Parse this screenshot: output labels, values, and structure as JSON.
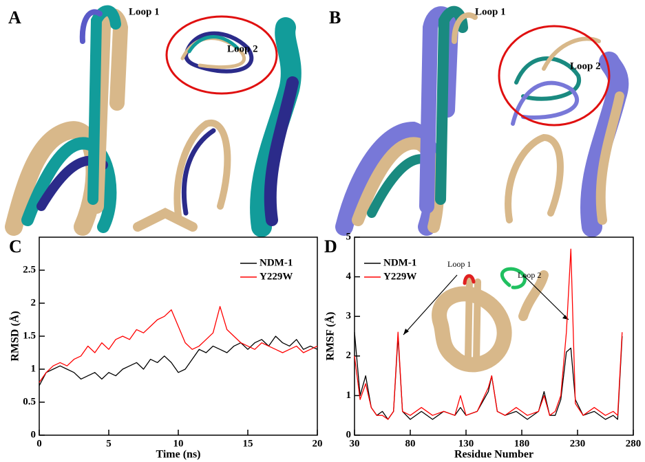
{
  "panels": {
    "A": {
      "label": "A",
      "annotations": [
        "Loop 1",
        "Loop 2"
      ]
    },
    "B": {
      "label": "B",
      "annotations": [
        "Loop 1",
        "Loop 2"
      ]
    }
  },
  "chart_data": [
    {
      "type": "line",
      "panel_label": "C",
      "xlabel": "Time (ns)",
      "ylabel": "RMSD (Å)",
      "xlim": [
        0,
        20
      ],
      "ylim": [
        0,
        3
      ],
      "xticks": [
        0,
        5,
        10,
        15,
        20
      ],
      "yticks": [
        0,
        0.5,
        1,
        1.5,
        2,
        2.5
      ],
      "legend": "upper right",
      "x": [
        0,
        0.5,
        1,
        1.5,
        2,
        2.5,
        3,
        3.5,
        4,
        4.5,
        5,
        5.5,
        6,
        6.5,
        7,
        7.5,
        8,
        8.5,
        9,
        9.5,
        10,
        10.5,
        11,
        11.5,
        12,
        12.5,
        13,
        13.5,
        14,
        14.5,
        15,
        15.5,
        16,
        16.5,
        17,
        17.5,
        18,
        18.5,
        19,
        19.5,
        20
      ],
      "series": [
        {
          "name": "NDM-1",
          "color": "#000000",
          "values": [
            0.75,
            0.95,
            1.0,
            1.05,
            1.0,
            0.95,
            0.85,
            0.9,
            0.95,
            0.85,
            0.95,
            0.9,
            1.0,
            1.05,
            1.1,
            1.0,
            1.15,
            1.1,
            1.2,
            1.1,
            0.95,
            1.0,
            1.15,
            1.3,
            1.25,
            1.35,
            1.3,
            1.25,
            1.35,
            1.4,
            1.3,
            1.4,
            1.45,
            1.35,
            1.5,
            1.4,
            1.35,
            1.45,
            1.3,
            1.35,
            1.3
          ]
        },
        {
          "name": "Y229W",
          "color": "#ff0000",
          "values": [
            0.8,
            0.95,
            1.05,
            1.1,
            1.05,
            1.15,
            1.2,
            1.35,
            1.25,
            1.4,
            1.3,
            1.45,
            1.5,
            1.45,
            1.6,
            1.55,
            1.65,
            1.75,
            1.8,
            1.9,
            1.65,
            1.4,
            1.3,
            1.35,
            1.45,
            1.55,
            1.95,
            1.6,
            1.5,
            1.4,
            1.35,
            1.3,
            1.4,
            1.35,
            1.3,
            1.25,
            1.3,
            1.35,
            1.25,
            1.3,
            1.35
          ]
        }
      ]
    },
    {
      "type": "line",
      "panel_label": "D",
      "xlabel": "Residue Number",
      "ylabel": "RMSF (Å)",
      "xlim": [
        30,
        280
      ],
      "ylim": [
        0,
        5
      ],
      "xticks": [
        30,
        80,
        130,
        180,
        230,
        280
      ],
      "yticks": [
        0,
        1,
        2,
        3,
        4,
        5
      ],
      "legend": "upper left",
      "annotations": [
        "Loop 1",
        "Loop 2"
      ],
      "x": [
        30,
        35,
        40,
        45,
        50,
        55,
        60,
        65,
        69,
        73,
        80,
        90,
        100,
        110,
        120,
        125,
        130,
        140,
        150,
        153,
        158,
        165,
        175,
        185,
        195,
        200,
        205,
        210,
        215,
        220,
        224,
        228,
        235,
        245,
        255,
        262,
        266,
        270
      ],
      "series": [
        {
          "name": "NDM-1",
          "color": "#000000",
          "values": [
            2.6,
            1.0,
            1.5,
            0.7,
            0.5,
            0.6,
            0.4,
            0.6,
            2.5,
            0.6,
            0.4,
            0.6,
            0.4,
            0.6,
            0.5,
            0.7,
            0.5,
            0.6,
            1.1,
            1.5,
            0.6,
            0.5,
            0.6,
            0.4,
            0.6,
            1.1,
            0.5,
            0.5,
            0.9,
            2.1,
            2.2,
            0.9,
            0.5,
            0.6,
            0.4,
            0.5,
            0.4,
            2.5
          ]
        },
        {
          "name": "Y229W",
          "color": "#ff0000",
          "values": [
            2.0,
            0.9,
            1.3,
            0.7,
            0.5,
            0.5,
            0.4,
            0.6,
            2.6,
            0.6,
            0.5,
            0.7,
            0.5,
            0.6,
            0.5,
            1.0,
            0.5,
            0.6,
            1.2,
            1.5,
            0.6,
            0.5,
            0.7,
            0.5,
            0.6,
            1.0,
            0.5,
            0.6,
            1.0,
            2.6,
            4.7,
            0.8,
            0.5,
            0.7,
            0.5,
            0.6,
            0.5,
            2.6
          ]
        }
      ]
    }
  ]
}
